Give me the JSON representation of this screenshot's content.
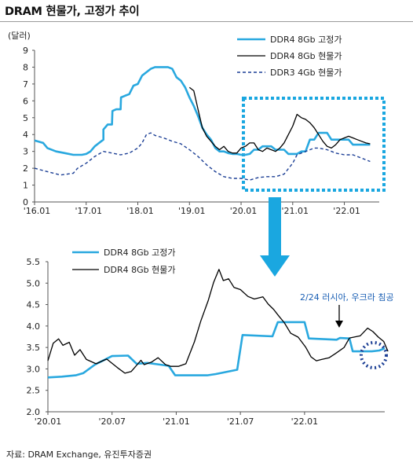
{
  "title": "DRAM 현물가, 고정가 추이",
  "source": "자료: DRAM Exchange, 유진투자증권",
  "colors": {
    "fixed": "#29a8df",
    "spot": "#000000",
    "ddr3": "#1c3f95",
    "highlight": "#1aa7e0",
    "arrow": "#1aa7e0",
    "note": "#1a5fb4"
  },
  "chart_data": [
    {
      "type": "line",
      "ylabel": "(달러)",
      "ylim": [
        0,
        9
      ],
      "yticks": [
        "0",
        "1",
        "2",
        "3",
        "4",
        "5",
        "6",
        "7",
        "8",
        "9"
      ],
      "xticks": [
        "'16.01",
        "'17.01",
        "'18.01",
        "'19.01",
        "'20.01",
        "'21.01",
        "'22.01"
      ],
      "legend_position": "top-right",
      "highlight_range": [
        "'20.01",
        "'22.06"
      ],
      "series": [
        {
          "name": "DDR4 8Gb 고정가",
          "style": "solid-blue",
          "points": [
            [
              0,
              3.65
            ],
            [
              2,
              3.5
            ],
            [
              3,
              3.2
            ],
            [
              5,
              3.0
            ],
            [
              7,
              2.9
            ],
            [
              9,
              2.8
            ],
            [
              11,
              2.8
            ],
            [
              12,
              2.85
            ],
            [
              13,
              3.0
            ],
            [
              14,
              3.3
            ],
            [
              15,
              3.5
            ],
            [
              16,
              3.7
            ],
            [
              16,
              4.3
            ],
            [
              17,
              4.6
            ],
            [
              18,
              4.6
            ],
            [
              18.1,
              5.4
            ],
            [
              19,
              5.5
            ],
            [
              20,
              5.5
            ],
            [
              20.1,
              6.2
            ],
            [
              21,
              6.3
            ],
            [
              22,
              6.4
            ],
            [
              23,
              6.9
            ],
            [
              24,
              7.0
            ],
            [
              25,
              7.5
            ],
            [
              26,
              7.7
            ],
            [
              27,
              7.9
            ],
            [
              28,
              8.0
            ],
            [
              30,
              8.0
            ],
            [
              31,
              8.0
            ],
            [
              32,
              7.9
            ],
            [
              33,
              7.4
            ],
            [
              34,
              7.2
            ],
            [
              35,
              6.8
            ],
            [
              36,
              6.2
            ],
            [
              37,
              5.7
            ],
            [
              38,
              5.1
            ],
            [
              39,
              4.4
            ],
            [
              40,
              4.0
            ],
            [
              41,
              3.7
            ],
            [
              42,
              3.2
            ],
            [
              43,
              3.0
            ],
            [
              44,
              3.0
            ],
            [
              45,
              2.9
            ],
            [
              46,
              2.85
            ],
            [
              47,
              2.85
            ],
            [
              48,
              2.8
            ],
            [
              49,
              2.8
            ],
            [
              50,
              2.85
            ],
            [
              51,
              3.1
            ],
            [
              52,
              3.1
            ],
            [
              53,
              3.3
            ],
            [
              54,
              3.3
            ],
            [
              55,
              3.3
            ],
            [
              56,
              3.1
            ],
            [
              57,
              3.1
            ],
            [
              58,
              3.1
            ],
            [
              59,
              2.85
            ],
            [
              60,
              2.85
            ],
            [
              61,
              2.85
            ],
            [
              62,
              3.0
            ],
            [
              63,
              3.0
            ],
            [
              64,
              3.7
            ],
            [
              65,
              3.7
            ],
            [
              66,
              4.1
            ],
            [
              67,
              4.1
            ],
            [
              68,
              4.1
            ],
            [
              69,
              3.7
            ],
            [
              70,
              3.7
            ],
            [
              71,
              3.7
            ],
            [
              72,
              3.7
            ],
            [
              73,
              3.7
            ],
            [
              74,
              3.4
            ],
            [
              75,
              3.4
            ],
            [
              76,
              3.4
            ],
            [
              77,
              3.4
            ],
            [
              78,
              3.4
            ]
          ]
        },
        {
          "name": "DDR4 8Gb 현물가",
          "style": "solid-black",
          "points": [
            [
              36,
              6.8
            ],
            [
              37,
              6.6
            ],
            [
              38,
              5.5
            ],
            [
              39,
              4.4
            ],
            [
              40,
              3.9
            ],
            [
              41,
              3.6
            ],
            [
              42,
              3.3
            ],
            [
              43,
              3.1
            ],
            [
              44,
              3.3
            ],
            [
              45,
              3.0
            ],
            [
              46,
              2.9
            ],
            [
              47,
              2.9
            ],
            [
              48,
              3.2
            ],
            [
              49,
              3.3
            ],
            [
              50,
              3.5
            ],
            [
              51,
              3.5
            ],
            [
              52,
              3.1
            ],
            [
              53,
              3.0
            ],
            [
              54,
              3.2
            ],
            [
              55,
              3.1
            ],
            [
              56,
              3.0
            ],
            [
              57,
              3.2
            ],
            [
              58,
              3.5
            ],
            [
              59,
              4.0
            ],
            [
              60,
              4.5
            ],
            [
              61,
              5.2
            ],
            [
              62,
              5.0
            ],
            [
              63,
              4.9
            ],
            [
              64,
              4.7
            ],
            [
              65,
              4.4
            ],
            [
              66,
              4.0
            ],
            [
              67,
              3.6
            ],
            [
              68,
              3.3
            ],
            [
              69,
              3.2
            ],
            [
              70,
              3.4
            ],
            [
              71,
              3.7
            ],
            [
              72,
              3.8
            ],
            [
              73,
              3.9
            ],
            [
              74,
              3.8
            ],
            [
              75,
              3.7
            ],
            [
              76,
              3.6
            ],
            [
              77,
              3.5
            ],
            [
              78,
              3.45
            ]
          ]
        },
        {
          "name": "DDR3 4Gb 현물가",
          "style": "dashed-navy",
          "points": [
            [
              0,
              2.0
            ],
            [
              3,
              1.8
            ],
            [
              6,
              1.6
            ],
            [
              9,
              1.7
            ],
            [
              10,
              2.0
            ],
            [
              12,
              2.3
            ],
            [
              14,
              2.7
            ],
            [
              16,
              3.0
            ],
            [
              18,
              2.9
            ],
            [
              20,
              2.8
            ],
            [
              22,
              2.9
            ],
            [
              24,
              3.2
            ],
            [
              25,
              3.5
            ],
            [
              26,
              4.0
            ],
            [
              27,
              4.1
            ],
            [
              28,
              3.95
            ],
            [
              30,
              3.8
            ],
            [
              32,
              3.6
            ],
            [
              34,
              3.45
            ],
            [
              36,
              3.1
            ],
            [
              38,
              2.7
            ],
            [
              40,
              2.2
            ],
            [
              42,
              1.8
            ],
            [
              44,
              1.5
            ],
            [
              46,
              1.4
            ],
            [
              48,
              1.4
            ],
            [
              50,
              1.3
            ],
            [
              52,
              1.45
            ],
            [
              54,
              1.5
            ],
            [
              56,
              1.5
            ],
            [
              58,
              1.65
            ],
            [
              60,
              2.3
            ],
            [
              61,
              2.8
            ],
            [
              63,
              3.0
            ],
            [
              65,
              3.2
            ],
            [
              66,
              3.2
            ],
            [
              68,
              3.1
            ],
            [
              70,
              2.9
            ],
            [
              72,
              2.8
            ],
            [
              74,
              2.8
            ],
            [
              76,
              2.6
            ],
            [
              78,
              2.4
            ]
          ]
        }
      ]
    },
    {
      "type": "line",
      "ylim": [
        2.0,
        5.5
      ],
      "yticks": [
        "2.0",
        "2.5",
        "3.0",
        "3.5",
        "4.0",
        "4.5",
        "5.0",
        "5.5"
      ],
      "xticks": [
        "'20.01",
        "'20.07",
        "'21.01",
        "'21.07",
        "'22.01"
      ],
      "legend_position": "top-left",
      "annotation": "2/24 러시아, 우크라 침공",
      "series": [
        {
          "name": "DDR4 8Gb 고정가",
          "style": "solid-blue",
          "points": [
            [
              0,
              2.8
            ],
            [
              1.3,
              2.82
            ],
            [
              2.6,
              2.85
            ],
            [
              3.3,
              2.9
            ],
            [
              4.4,
              3.1
            ],
            [
              6.0,
              3.3
            ],
            [
              7.5,
              3.31
            ],
            [
              8.3,
              3.12
            ],
            [
              9.3,
              3.14
            ],
            [
              10.5,
              3.1
            ],
            [
              11.3,
              3.07
            ],
            [
              11.9,
              2.85
            ],
            [
              14.9,
              2.85
            ],
            [
              15.7,
              2.88
            ],
            [
              17.7,
              2.98
            ],
            [
              18.2,
              3.79
            ],
            [
              21.0,
              3.76
            ],
            [
              21.5,
              4.09
            ],
            [
              24.0,
              4.09
            ],
            [
              24.4,
              3.71
            ],
            [
              27.0,
              3.68
            ],
            [
              27.3,
              3.72
            ],
            [
              28.2,
              3.71
            ],
            [
              28.5,
              3.41
            ],
            [
              30.3,
              3.41
            ],
            [
              31.0,
              3.43
            ],
            [
              31.5,
              3.48
            ]
          ]
        },
        {
          "name": "DDR4 8Gb 현물가",
          "style": "solid-black",
          "points": [
            [
              0,
              3.19
            ],
            [
              0.5,
              3.6
            ],
            [
              1.0,
              3.7
            ],
            [
              1.4,
              3.55
            ],
            [
              2.0,
              3.62
            ],
            [
              2.5,
              3.32
            ],
            [
              3.0,
              3.45
            ],
            [
              3.6,
              3.22
            ],
            [
              4.5,
              3.12
            ],
            [
              5.5,
              3.23
            ],
            [
              6.5,
              3.03
            ],
            [
              7.2,
              2.9
            ],
            [
              7.8,
              2.94
            ],
            [
              8.7,
              3.2
            ],
            [
              9.0,
              3.1
            ],
            [
              9.7,
              3.16
            ],
            [
              10.3,
              3.26
            ],
            [
              11.0,
              3.1
            ],
            [
              11.5,
              3.06
            ],
            [
              12.2,
              3.06
            ],
            [
              12.9,
              3.12
            ],
            [
              13.7,
              3.63
            ],
            [
              14.3,
              4.12
            ],
            [
              15.0,
              4.6
            ],
            [
              15.5,
              5.02
            ],
            [
              16.0,
              5.32
            ],
            [
              16.4,
              5.06
            ],
            [
              16.9,
              5.1
            ],
            [
              17.4,
              4.9
            ],
            [
              18.0,
              4.85
            ],
            [
              18.7,
              4.69
            ],
            [
              19.3,
              4.63
            ],
            [
              20.1,
              4.68
            ],
            [
              20.6,
              4.51
            ],
            [
              21.1,
              4.39
            ],
            [
              21.6,
              4.23
            ],
            [
              22.1,
              4.08
            ],
            [
              22.7,
              3.83
            ],
            [
              23.4,
              3.74
            ],
            [
              24.1,
              3.51
            ],
            [
              24.6,
              3.28
            ],
            [
              25.1,
              3.19
            ],
            [
              25.6,
              3.22
            ],
            [
              26.3,
              3.26
            ],
            [
              26.9,
              3.36
            ],
            [
              27.7,
              3.5
            ],
            [
              28.2,
              3.72
            ],
            [
              29.2,
              3.77
            ],
            [
              29.9,
              3.95
            ],
            [
              30.4,
              3.87
            ],
            [
              30.9,
              3.74
            ],
            [
              31.4,
              3.64
            ],
            [
              31.8,
              3.41
            ]
          ]
        }
      ]
    }
  ]
}
